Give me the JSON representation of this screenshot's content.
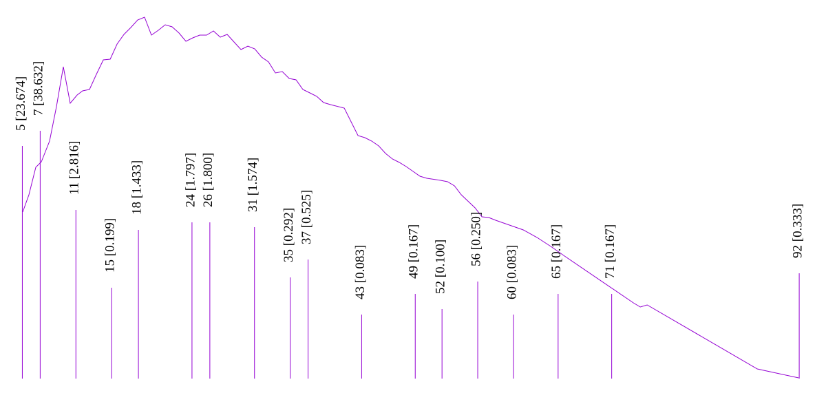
{
  "chart_data": {
    "type": "spike",
    "color": "#9400d3",
    "xlim": [
      2.5,
      95
    ],
    "ylim": [
      0,
      550
    ],
    "x": [
      5,
      7,
      11,
      15,
      18,
      24,
      26,
      31,
      35,
      37,
      43,
      49,
      52,
      56,
      60,
      65,
      71,
      92
    ],
    "heights": [
      338,
      360,
      245,
      132,
      216,
      227,
      227,
      220,
      147,
      173,
      93,
      123,
      101,
      141,
      93,
      123,
      123,
      153
    ],
    "values": [
      23.674,
      38.632,
      2.816,
      0.199,
      1.433,
      1.797,
      1.8,
      1.574,
      0.292,
      0.525,
      0.083,
      0.167,
      0.1,
      0.25,
      0.083,
      0.167,
      0.167,
      0.333
    ],
    "value_labels": [
      "5 [23.674]",
      "7 [38.632]",
      "11 [2.816]",
      "15 [0.199]",
      "18 [1.433]",
      "24 [1.797]",
      "26 [1.800]",
      "31 [1.574]",
      "35 [0.292]",
      "37 [0.525]",
      "43 [0.083]",
      "49 [0.167]",
      "52 [0.100]",
      "56 [0.250]",
      "60 [0.083]",
      "65 [0.167]",
      "71 [0.167]",
      "92 [0.333]"
    ],
    "curve": {
      "x": [
        5.04,
        5.74,
        6.51,
        7.13,
        8.05,
        8.82,
        9.59,
        10.36,
        11.14,
        11.75,
        12.52,
        13.29,
        14.07,
        14.84,
        15.61,
        16.38,
        17.15,
        17.92,
        18.69,
        19.46,
        20.23,
        21.0,
        21.78,
        22.55,
        23.32,
        24.09,
        24.86,
        25.63,
        26.4,
        27.17,
        27.94,
        28.71,
        29.49,
        30.26,
        31.03,
        31.8,
        32.57,
        33.34,
        34.11,
        34.88,
        35.65,
        36.42,
        37.2,
        37.97,
        38.74,
        39.51,
        41.05,
        41.82,
        42.59,
        43.36,
        44.13,
        44.91,
        45.68,
        46.45,
        47.22,
        47.99,
        48.76,
        49.53,
        50.3,
        51.84,
        52.62,
        53.39,
        54.16,
        55.7,
        56.47,
        57.24,
        58.01,
        59.55,
        61.1,
        62.64,
        64.18,
        65.72,
        73.43,
        74.2,
        74.97,
        87.31,
        91.94
      ],
      "values": [
        242,
        267,
        307,
        315,
        345,
        395,
        453,
        400,
        412,
        418,
        420,
        442,
        463,
        464,
        486,
        500,
        510,
        521,
        525,
        499,
        506,
        514,
        511,
        502,
        490,
        495,
        499,
        499,
        505,
        496,
        500,
        489,
        478,
        483,
        479,
        467,
        460,
        444,
        446,
        436,
        434,
        420,
        415,
        410,
        401,
        398,
        393,
        373,
        353,
        350,
        345,
        338,
        327,
        319,
        314,
        308,
        301,
        294,
        291,
        288,
        286,
        280,
        267,
        248,
        235,
        234,
        230,
        223,
        216,
        205,
        192,
        178,
        110,
        104,
        107,
        14,
        1
      ]
    }
  }
}
